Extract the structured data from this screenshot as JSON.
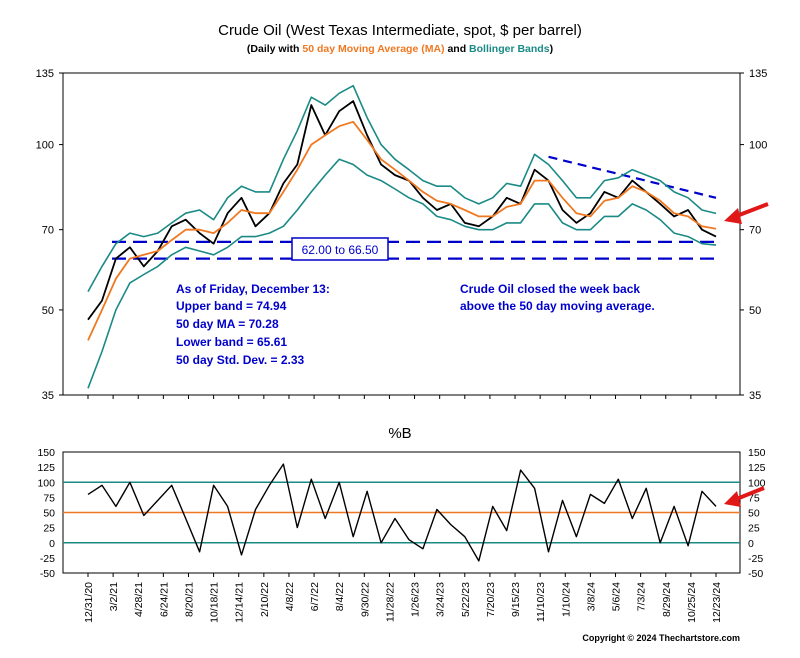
{
  "colors": {
    "price": "#000000",
    "ma": "#f07820",
    "bands": "#1a8a86",
    "annotation": "#0000cc",
    "arrow": "#e01818",
    "frame": "#000000",
    "pctb_ref_lines": "#1a8a86",
    "pctb_mid_line": "#f07820"
  },
  "chart_data": [
    {
      "type": "line",
      "title": "Crude Oil (West Texas Intermediate, spot, $ per barrel)",
      "subtitle_parts": [
        {
          "text": "(Daily with ",
          "color": "#000000"
        },
        {
          "text": "50 day Moving Average (MA)",
          "color": "#f07820"
        },
        {
          "text": " and ",
          "color": "#000000"
        },
        {
          "text": "Bollinger Bands",
          "color": "#1a8a86"
        },
        {
          "text": ")",
          "color": "#000000"
        }
      ],
      "y_scale": "log",
      "ylim": [
        35,
        135
      ],
      "y_ticks": [
        35,
        50,
        70,
        100,
        135
      ],
      "x_ticks": [
        "12/31/20",
        "3/2/21",
        "4/28/21",
        "6/24/21",
        "8/20/21",
        "10/18/21",
        "12/14/21",
        "2/10/22",
        "4/8/22",
        "6/7/22",
        "8/4/22",
        "9/30/22",
        "11/28/22",
        "1/26/23",
        "3/24/23",
        "5/22/23",
        "7/20/23",
        "9/15/23",
        "11/10/23",
        "1/10/24",
        "3/8/24",
        "5/6/24",
        "7/3/24",
        "8/29/24",
        "10/25/24",
        "12/23/24"
      ],
      "series": [
        {
          "name": "Crude Oil",
          "style": "price",
          "values": [
            [
              0,
              48
            ],
            [
              1,
              52
            ],
            [
              2,
              62
            ],
            [
              3,
              65
            ],
            [
              4,
              60
            ],
            [
              5,
              64
            ],
            [
              6,
              71
            ],
            [
              7,
              73
            ],
            [
              8,
              69
            ],
            [
              9,
              66
            ],
            [
              10,
              75
            ],
            [
              11,
              80
            ],
            [
              12,
              71
            ],
            [
              13,
              75
            ],
            [
              14,
              85
            ],
            [
              15,
              92
            ],
            [
              16,
              118
            ],
            [
              17,
              104
            ],
            [
              18,
              115
            ],
            [
              19,
              120
            ],
            [
              20,
              104
            ],
            [
              21,
              92
            ],
            [
              22,
              88
            ],
            [
              23,
              86
            ],
            [
              24,
              80
            ],
            [
              25,
              76
            ],
            [
              26,
              78
            ],
            [
              27,
              72
            ],
            [
              28,
              71
            ],
            [
              29,
              74
            ],
            [
              30,
              80
            ],
            [
              31,
              78
            ],
            [
              32,
              90
            ],
            [
              33,
              86
            ],
            [
              34,
              76
            ],
            [
              35,
              72
            ],
            [
              36,
              75
            ],
            [
              37,
              82
            ],
            [
              38,
              80
            ],
            [
              39,
              86
            ],
            [
              40,
              82
            ],
            [
              41,
              78
            ],
            [
              42,
              74
            ],
            [
              43,
              76
            ],
            [
              44,
              70
            ],
            [
              45,
              68
            ]
          ]
        },
        {
          "name": "50 day Moving Average (MA)",
          "style": "ma",
          "values": [
            [
              0,
              44
            ],
            [
              1,
              50
            ],
            [
              2,
              57
            ],
            [
              3,
              62
            ],
            [
              4,
              63
            ],
            [
              5,
              64
            ],
            [
              6,
              67
            ],
            [
              7,
              70
            ],
            [
              8,
              70
            ],
            [
              9,
              69
            ],
            [
              10,
              72
            ],
            [
              11,
              76
            ],
            [
              12,
              75
            ],
            [
              13,
              75
            ],
            [
              14,
              82
            ],
            [
              15,
              90
            ],
            [
              16,
              100
            ],
            [
              17,
              104
            ],
            [
              18,
              108
            ],
            [
              19,
              110
            ],
            [
              20,
              102
            ],
            [
              21,
              94
            ],
            [
              22,
              90
            ],
            [
              23,
              86
            ],
            [
              24,
              82
            ],
            [
              25,
              79
            ],
            [
              26,
              78
            ],
            [
              27,
              76
            ],
            [
              28,
              74
            ],
            [
              29,
              74
            ],
            [
              30,
              77
            ],
            [
              31,
              78
            ],
            [
              32,
              86
            ],
            [
              33,
              86
            ],
            [
              34,
              80
            ],
            [
              35,
              75
            ],
            [
              36,
              74
            ],
            [
              37,
              79
            ],
            [
              38,
              80
            ],
            [
              39,
              84
            ],
            [
              40,
              82
            ],
            [
              41,
              79
            ],
            [
              42,
              75
            ],
            [
              43,
              74
            ],
            [
              44,
              71
            ],
            [
              45,
              70.28
            ]
          ]
        },
        {
          "name": "Upper Bollinger Band",
          "style": "band",
          "values": [
            [
              0,
              54
            ],
            [
              1,
              60
            ],
            [
              2,
              66
            ],
            [
              3,
              69
            ],
            [
              4,
              68
            ],
            [
              5,
              69
            ],
            [
              6,
              72
            ],
            [
              7,
              75
            ],
            [
              8,
              76
            ],
            [
              9,
              73
            ],
            [
              10,
              80
            ],
            [
              11,
              84
            ],
            [
              12,
              82
            ],
            [
              13,
              82
            ],
            [
              14,
              94
            ],
            [
              15,
              106
            ],
            [
              16,
              122
            ],
            [
              17,
              118
            ],
            [
              18,
              124
            ],
            [
              19,
              128
            ],
            [
              20,
              112
            ],
            [
              21,
              100
            ],
            [
              22,
              94
            ],
            [
              23,
              90
            ],
            [
              24,
              86
            ],
            [
              25,
              84
            ],
            [
              26,
              84
            ],
            [
              27,
              80
            ],
            [
              28,
              78
            ],
            [
              29,
              80
            ],
            [
              30,
              85
            ],
            [
              31,
              84
            ],
            [
              32,
              96
            ],
            [
              33,
              92
            ],
            [
              34,
              86
            ],
            [
              35,
              80
            ],
            [
              36,
              80
            ],
            [
              37,
              86
            ],
            [
              38,
              87
            ],
            [
              39,
              90
            ],
            [
              40,
              88
            ],
            [
              41,
              86
            ],
            [
              42,
              82
            ],
            [
              43,
              80
            ],
            [
              44,
              76
            ],
            [
              45,
              74.94
            ]
          ]
        },
        {
          "name": "Lower Bollinger Band",
          "style": "band",
          "values": [
            [
              0,
              36
            ],
            [
              1,
              42
            ],
            [
              2,
              50
            ],
            [
              3,
              56
            ],
            [
              4,
              58
            ],
            [
              5,
              60
            ],
            [
              6,
              63
            ],
            [
              7,
              65
            ],
            [
              8,
              64
            ],
            [
              9,
              63
            ],
            [
              10,
              65
            ],
            [
              11,
              68
            ],
            [
              12,
              68
            ],
            [
              13,
              69
            ],
            [
              14,
              71
            ],
            [
              15,
              76
            ],
            [
              16,
              82
            ],
            [
              17,
              88
            ],
            [
              18,
              94
            ],
            [
              19,
              92
            ],
            [
              20,
              88
            ],
            [
              21,
              86
            ],
            [
              22,
              83
            ],
            [
              23,
              80
            ],
            [
              24,
              78
            ],
            [
              25,
              74
            ],
            [
              26,
              73
            ],
            [
              27,
              71
            ],
            [
              28,
              70
            ],
            [
              29,
              70
            ],
            [
              30,
              72
            ],
            [
              31,
              72
            ],
            [
              32,
              78
            ],
            [
              33,
              78
            ],
            [
              34,
              72
            ],
            [
              35,
              70
            ],
            [
              36,
              70
            ],
            [
              37,
              74
            ],
            [
              38,
              74
            ],
            [
              39,
              78
            ],
            [
              40,
              76
            ],
            [
              41,
              73
            ],
            [
              42,
              69
            ],
            [
              43,
              68
            ],
            [
              44,
              66
            ],
            [
              45,
              65.61
            ]
          ]
        }
      ],
      "reference_lines": [
        {
          "type": "horizontal",
          "y": 62.0,
          "style": "dashed",
          "color": "#0000cc"
        },
        {
          "type": "horizontal",
          "y": 66.5,
          "style": "dashed",
          "color": "#0000cc"
        },
        {
          "type": "trend",
          "from": [
            33,
            95
          ],
          "to": [
            45,
            80
          ],
          "style": "dashed",
          "color": "#0000cc"
        }
      ],
      "annotations": {
        "range_box": "62.00 to 66.50",
        "stats_lines": [
          "As of Friday, December 13:",
          "Upper band = 74.94",
          "50 day MA = 70.28",
          "Lower band = 65.61",
          "50 day Std. Dev. = 2.33"
        ],
        "note_lines": [
          "Crude Oil closed the week back",
          "above the 50 day moving average."
        ]
      }
    },
    {
      "type": "line",
      "title": "%B",
      "ylim": [
        -50,
        150
      ],
      "y_ticks": [
        -50,
        -25,
        0,
        25,
        50,
        75,
        100,
        125,
        150
      ],
      "y_tick_labels": [
        "-50",
        "-25",
        "0",
        "25",
        "50",
        "75",
        "100",
        "125",
        "150"
      ],
      "reference_lines": [
        {
          "y": 100,
          "color": "#1a8a86"
        },
        {
          "y": 50,
          "color": "#f07820"
        },
        {
          "y": 0,
          "color": "#1a8a86"
        }
      ],
      "series": [
        {
          "name": "%B",
          "values": [
            [
              0,
              80
            ],
            [
              1,
              95
            ],
            [
              2,
              60
            ],
            [
              3,
              100
            ],
            [
              4,
              45
            ],
            [
              5,
              70
            ],
            [
              6,
              95
            ],
            [
              7,
              40
            ],
            [
              8,
              -15
            ],
            [
              9,
              95
            ],
            [
              10,
              60
            ],
            [
              11,
              -20
            ],
            [
              12,
              55
            ],
            [
              13,
              95
            ],
            [
              14,
              130
            ],
            [
              15,
              25
            ],
            [
              16,
              105
            ],
            [
              17,
              40
            ],
            [
              18,
              100
            ],
            [
              19,
              10
            ],
            [
              20,
              85
            ],
            [
              21,
              0
            ],
            [
              22,
              40
            ],
            [
              23,
              5
            ],
            [
              24,
              -10
            ],
            [
              25,
              55
            ],
            [
              26,
              30
            ],
            [
              27,
              10
            ],
            [
              28,
              -30
            ],
            [
              29,
              60
            ],
            [
              30,
              20
            ],
            [
              31,
              120
            ],
            [
              32,
              90
            ],
            [
              33,
              -15
            ],
            [
              34,
              70
            ],
            [
              35,
              10
            ],
            [
              36,
              80
            ],
            [
              37,
              65
            ],
            [
              38,
              105
            ],
            [
              39,
              40
            ],
            [
              40,
              90
            ],
            [
              41,
              0
            ],
            [
              42,
              60
            ],
            [
              43,
              -5
            ],
            [
              44,
              85
            ],
            [
              45,
              60
            ]
          ]
        }
      ],
      "x_ticks": [
        "12/31/20",
        "3/2/21",
        "4/28/21",
        "6/24/21",
        "8/20/21",
        "10/18/21",
        "12/14/21",
        "2/10/22",
        "4/8/22",
        "6/7/22",
        "8/4/22",
        "9/30/22",
        "11/28/22",
        "1/26/23",
        "3/24/23",
        "5/22/23",
        "7/20/23",
        "9/15/23",
        "11/10/23",
        "1/10/24",
        "3/8/24",
        "5/6/24",
        "7/3/24",
        "8/29/24",
        "10/25/24",
        "12/23/24"
      ]
    }
  ],
  "copyright": "Copyright © 2024 Thechartstore.com"
}
